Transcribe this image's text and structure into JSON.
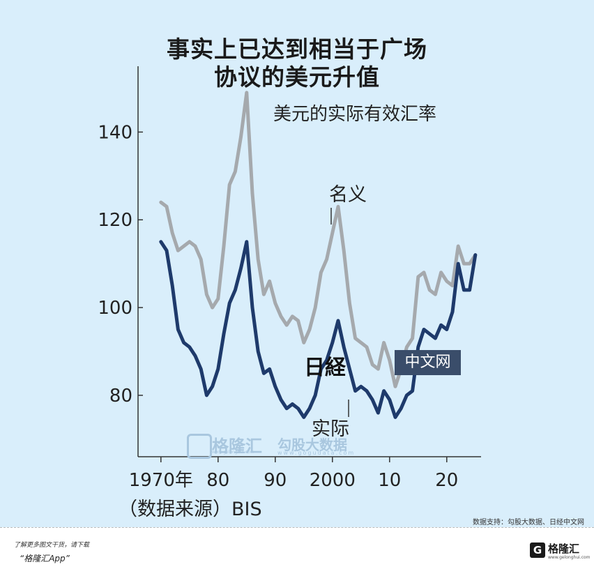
{
  "title_line1": "事实上已达到相当于广场",
  "title_line2": "协议的美元升值",
  "subtitle": "美元的实际有效汇率",
  "source_note": "（数据来源）BIS",
  "credit": "数据支持：勾股大数据、日经中文网",
  "footer": {
    "line1": "了解更多图文干货，请下载",
    "line2": "“格隆汇App”"
  },
  "logo": {
    "mark": "G",
    "name": "格隆汇",
    "sub": "www.gelonghui.com"
  },
  "watermarks": {
    "gelonghui": "格隆汇",
    "gelonghui_url": "www.gelonghui.com",
    "gogudata": "勾股大数据",
    "gogudata_url": "www.gogudata.com"
  },
  "nikkei_logo": {
    "left": "日経",
    "right": "中文网"
  },
  "colors": {
    "nominal": "#a5a9ad",
    "real": "#1e3a6b",
    "background": "#d9eefb"
  },
  "chart_data": {
    "type": "line",
    "x_tick_labels": [
      "1970年",
      "80",
      "90",
      "2000",
      "10",
      "20"
    ],
    "x_ticks": [
      1970,
      1980,
      1990,
      2000,
      2010,
      2020
    ],
    "y_ticks": [
      80,
      100,
      120,
      140
    ],
    "xlim": [
      1966,
      2026
    ],
    "ylim": [
      66,
      155
    ],
    "series": [
      {
        "name": "名义",
        "x": [
          1970,
          1971,
          1972,
          1973,
          1974,
          1975,
          1976,
          1977,
          1978,
          1979,
          1980,
          1981,
          1982,
          1983,
          1984,
          1985,
          1986,
          1987,
          1988,
          1989,
          1990,
          1991,
          1992,
          1993,
          1994,
          1995,
          1996,
          1997,
          1998,
          1999,
          2000,
          2001,
          2002,
          2003,
          2004,
          2005,
          2006,
          2007,
          2008,
          2009,
          2010,
          2011,
          2012,
          2013,
          2014,
          2015,
          2016,
          2017,
          2018,
          2019,
          2020,
          2021,
          2022,
          2023,
          2024,
          2025
        ],
        "values": [
          124,
          123,
          117,
          113,
          114,
          115,
          114,
          111,
          103,
          100,
          102,
          114,
          128,
          131,
          139,
          149,
          126,
          111,
          103,
          106,
          101,
          98,
          96,
          98,
          97,
          92,
          95,
          100,
          108,
          111,
          117,
          123,
          113,
          101,
          93,
          92,
          91,
          87,
          86,
          92,
          88,
          82,
          86,
          91,
          93,
          107,
          108,
          104,
          103,
          108,
          106,
          105,
          114,
          110,
          110,
          112
        ]
      },
      {
        "name": "实际",
        "x": [
          1970,
          1971,
          1972,
          1973,
          1974,
          1975,
          1976,
          1977,
          1978,
          1979,
          1980,
          1981,
          1982,
          1983,
          1984,
          1985,
          1986,
          1987,
          1988,
          1989,
          1990,
          1991,
          1992,
          1993,
          1994,
          1995,
          1996,
          1997,
          1998,
          1999,
          2000,
          2001,
          2002,
          2003,
          2004,
          2005,
          2006,
          2007,
          2008,
          2009,
          2010,
          2011,
          2012,
          2013,
          2014,
          2015,
          2016,
          2017,
          2018,
          2019,
          2020,
          2021,
          2022,
          2023,
          2024,
          2025
        ],
        "values": [
          115,
          113,
          105,
          95,
          92,
          91,
          89,
          86,
          80,
          82,
          86,
          94,
          101,
          104,
          109,
          115,
          100,
          90,
          85,
          86,
          82,
          79,
          77,
          78,
          77,
          75,
          77,
          80,
          86,
          88,
          92,
          97,
          91,
          86,
          81,
          82,
          81,
          79,
          76,
          81,
          79,
          75,
          77,
          80,
          81,
          91,
          95,
          94,
          93,
          96,
          95,
          99,
          110,
          104,
          104,
          112
        ]
      }
    ],
    "annotations": [
      "名义",
      "实际"
    ],
    "grid": false
  }
}
